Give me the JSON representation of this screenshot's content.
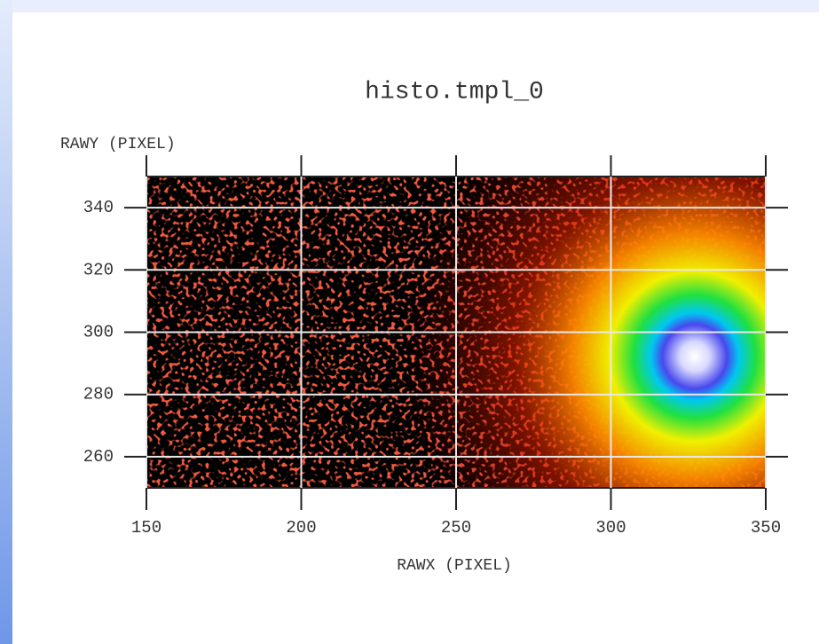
{
  "chart_data": {
    "type": "heatmap",
    "title": "histo.tmpl_0",
    "xlabel": "RAWX (PIXEL)",
    "ylabel": "RAWY (PIXEL)",
    "xlim": [
      150,
      350
    ],
    "ylim": [
      250,
      350
    ],
    "xticks": [
      150,
      200,
      250,
      300,
      350
    ],
    "yticks": [
      260,
      280,
      300,
      320,
      340
    ],
    "grid": true
  }
}
